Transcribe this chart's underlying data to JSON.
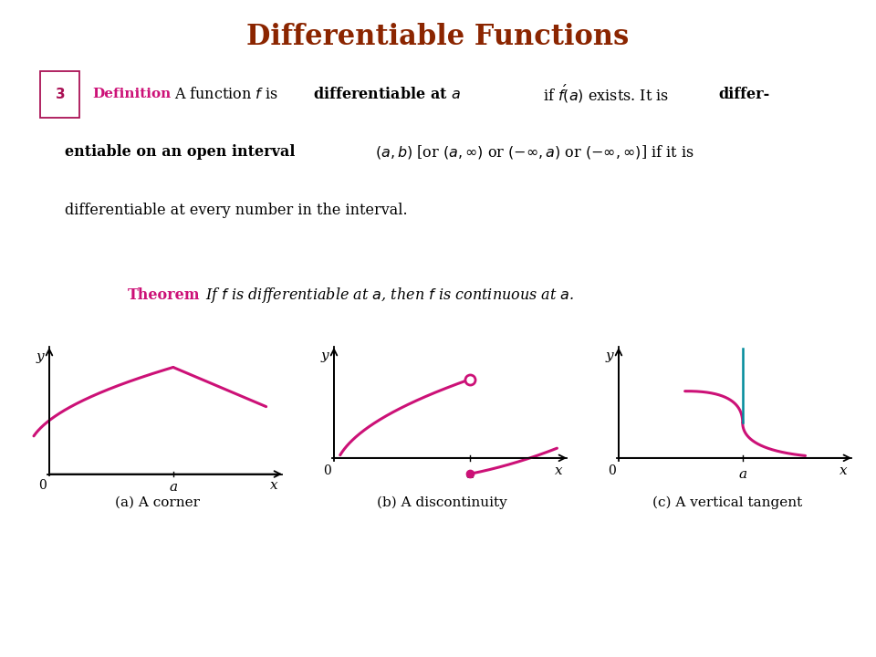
{
  "title": "Differentiable Functions",
  "title_color": "#8B2500",
  "title_fontsize": 22,
  "bg_color": "#FFFFFF",
  "pink_color": "#CC1177",
  "teal_color": "#008B9B",
  "box_color": "#AA1155",
  "caption_a": "(a) A corner",
  "caption_b": "(b) A discontinuity",
  "caption_c": "(c) A vertical tangent"
}
